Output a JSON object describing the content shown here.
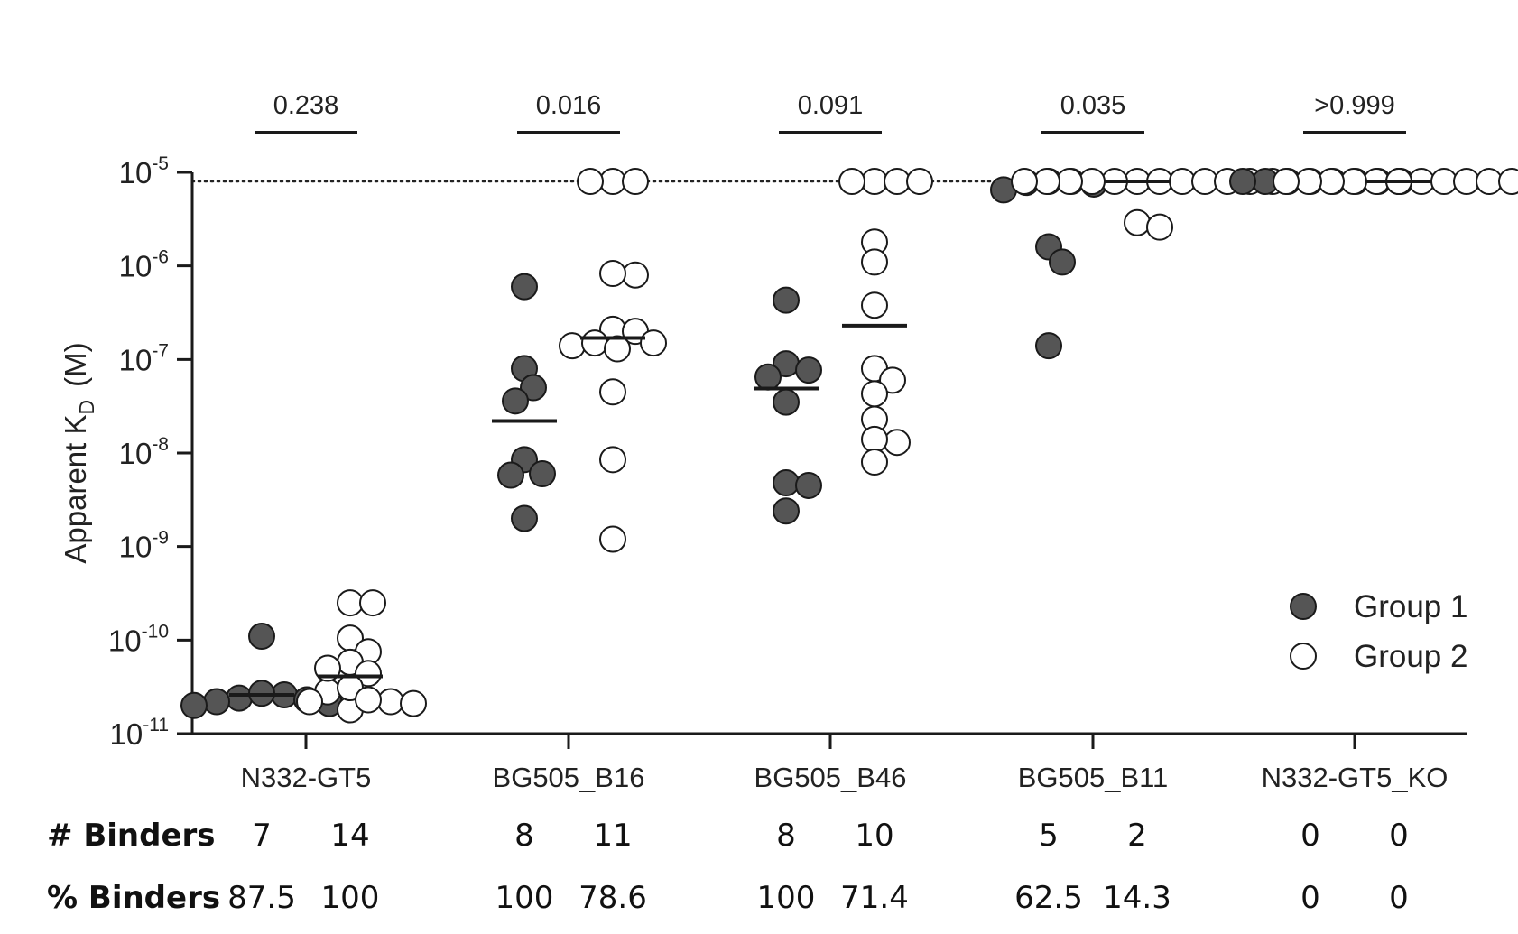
{
  "chart_data": {
    "type": "scatter",
    "ylabel": {
      "main": "Apparent K",
      "sub": "D",
      "unit": "(M)"
    },
    "yscale": "log",
    "yticks": [
      {
        "base": "10",
        "exp": "-11",
        "value": 1e-11
      },
      {
        "base": "10",
        "exp": "-10",
        "value": 1e-10
      },
      {
        "base": "10",
        "exp": "-9",
        "value": 1e-09
      },
      {
        "base": "10",
        "exp": "-8",
        "value": 1e-08
      },
      {
        "base": "10",
        "exp": "-7",
        "value": 1e-07
      },
      {
        "base": "10",
        "exp": "-6",
        "value": 1e-06
      },
      {
        "base": "10",
        "exp": "-5",
        "value": 1e-05
      }
    ],
    "ylim": [
      1e-11,
      1e-05
    ],
    "threshold": 8e-06,
    "legend": {
      "placement": "bottom-right"
    },
    "colors": {
      "group1": "#555555",
      "group2": "#ffffff",
      "stroke": "#1a1a1a"
    },
    "series": [
      {
        "name": "Group 1",
        "key": "group1"
      },
      {
        "name": "Group 2",
        "key": "group2"
      }
    ],
    "categories": [
      {
        "label": "N332-GT5",
        "p_value": "0.238",
        "group1": {
          "values": [
            1.1e-10,
            2.6e-11,
            2.4e-11,
            2.2e-11,
            2.3e-11,
            2.7e-11,
            2e-11,
            2.1e-11
          ],
          "median": 2.6e-11
        },
        "group2": {
          "values": [
            2.5e-10,
            2.5e-10,
            1.05e-10,
            7.5e-11,
            5.8e-11,
            4.4e-11,
            2.8e-11,
            2.2e-11,
            2.1e-11,
            2.2e-11,
            1.8e-11,
            3.1e-11,
            5e-11,
            2.3e-11
          ],
          "median": 4.1e-11
        }
      },
      {
        "label": "BG505_B16",
        "p_value": "0.016",
        "group1": {
          "values": [
            6e-07,
            8e-08,
            5e-08,
            3.6e-08,
            8.5e-09,
            5.8e-09,
            6e-09,
            2e-09
          ],
          "median": 2.2e-08
        },
        "group2": {
          "values": [
            8e-06,
            8e-06,
            8e-06,
            8e-07,
            8.3e-07,
            2.1e-07,
            2e-07,
            1.4e-07,
            1.5e-07,
            1.5e-07,
            1.3e-07,
            4.5e-08,
            8.5e-09,
            1.2e-09
          ],
          "median": 1.7e-07
        }
      },
      {
        "label": "BG505_B46",
        "p_value": "0.091",
        "group1": {
          "values": [
            4.3e-07,
            9e-08,
            7.7e-08,
            6.5e-08,
            3.5e-08,
            4.8e-09,
            4.5e-09,
            2.4e-09
          ],
          "median": 4.9e-08
        },
        "group2": {
          "values": [
            8e-06,
            8e-06,
            8e-06,
            8e-06,
            1.8e-06,
            1.1e-06,
            3.8e-07,
            8e-08,
            6e-08,
            4.3e-08,
            2.3e-08,
            1.3e-08,
            1.4e-08,
            8e-09
          ],
          "median": 2.3e-07
        }
      },
      {
        "label": "BG505_B11",
        "p_value": "0.035",
        "group1": {
          "values": [
            8e-06,
            7.5e-06,
            7.8e-06,
            6.5e-06,
            8e-06,
            1.6e-06,
            1.1e-06,
            1.4e-07
          ],
          "median": 7.2e-06
        },
        "group2": {
          "values": [
            8e-06,
            8e-06,
            8e-06,
            8e-06,
            8e-06,
            8e-06,
            8e-06,
            8e-06,
            8e-06,
            8e-06,
            8e-06,
            8e-06,
            2.9e-06,
            2.6e-06
          ],
          "median": 8e-06
        }
      },
      {
        "label": "N332-GT5_KO",
        "p_value": ">0.999",
        "group1": {
          "values": [
            8e-06,
            8e-06,
            8e-06,
            8e-06,
            8e-06,
            8e-06,
            8e-06,
            8e-06
          ],
          "median": 8e-06
        },
        "group2": {
          "values": [
            8e-06,
            8e-06,
            8e-06,
            8e-06,
            8e-06,
            8e-06,
            8e-06,
            8e-06,
            8e-06,
            8e-06,
            8e-06,
            8e-06,
            8e-06,
            8e-06
          ],
          "median": 8e-06
        }
      }
    ]
  },
  "table": {
    "rows": [
      {
        "label": "# Binders",
        "values": [
          [
            "7",
            "14"
          ],
          [
            "8",
            "11"
          ],
          [
            "8",
            "10"
          ],
          [
            "5",
            "2"
          ],
          [
            "0",
            "0"
          ]
        ]
      },
      {
        "label": "% Binders",
        "values": [
          [
            "87.5",
            "100"
          ],
          [
            "100",
            "78.6"
          ],
          [
            "100",
            "71.4"
          ],
          [
            "62.5",
            "14.3"
          ],
          [
            "0",
            "0"
          ]
        ]
      }
    ]
  }
}
